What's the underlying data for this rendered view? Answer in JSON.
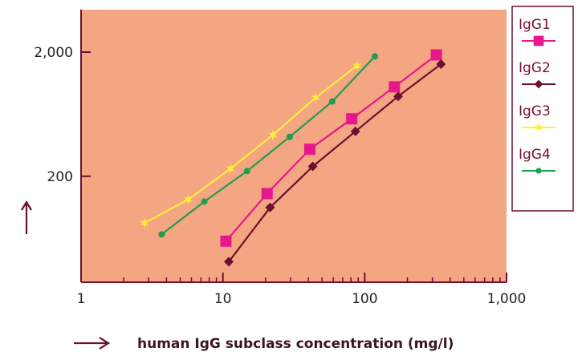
{
  "chart_data": {
    "type": "line",
    "title": "",
    "xlabel": "human IgG subclass concentration (mg/l)",
    "ylabel": "",
    "x_scale": "log",
    "y_scale": "log",
    "xlim": [
      1,
      1000
    ],
    "ylim": [
      28,
      4400
    ],
    "x_ticks": [
      1,
      10,
      100,
      1000
    ],
    "x_tick_labels": [
      "1",
      "10",
      "100",
      "1,000"
    ],
    "y_ticks": [
      200,
      2000
    ],
    "y_tick_labels": [
      "200",
      "2,000"
    ],
    "legend_position": "right",
    "plot_background": "#f4a582",
    "axis_color": "#6b1030",
    "series": [
      {
        "name": "IgG1",
        "color": "#e8188c",
        "marker": "square",
        "x": [
          10.5,
          20.5,
          41,
          81,
          162,
          320
        ],
        "y": [
          60,
          145,
          330,
          580,
          1050,
          1900
        ]
      },
      {
        "name": "IgG2",
        "color": "#6b1030",
        "marker": "diamond",
        "x": [
          11,
          21.5,
          43,
          86,
          172,
          345
        ],
        "y": [
          41,
          112,
          240,
          460,
          880,
          1600
        ]
      },
      {
        "name": "IgG3",
        "color": "#ffef3a",
        "marker": "star",
        "x": [
          2.8,
          5.7,
          11.3,
          22.5,
          45,
          88
        ],
        "y": [
          84,
          130,
          230,
          430,
          860,
          1550
        ]
      },
      {
        "name": "IgG4",
        "color": "#1e9e4e",
        "marker": "circle",
        "x": [
          3.7,
          7.4,
          14.8,
          29.6,
          59,
          118
        ],
        "y": [
          68,
          125,
          220,
          415,
          800,
          1850
        ]
      }
    ]
  }
}
